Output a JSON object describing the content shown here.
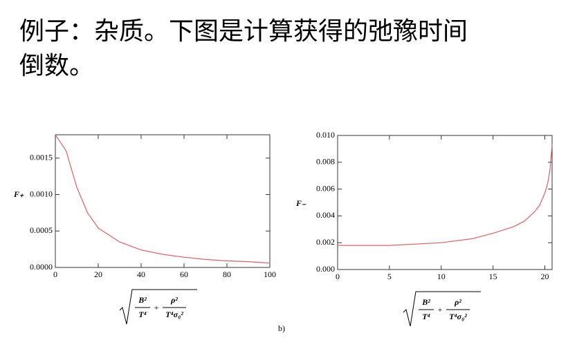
{
  "slide": {
    "title_lines": [
      "例子：杂质。下图是计算获得的弛豫时间",
      "倒数。"
    ]
  },
  "chart_data": [
    {
      "type": "line",
      "ylabel": "F₊",
      "xlabel": {
        "num1": "B²",
        "den1": "T⁴",
        "op": "+",
        "num2": "ρ²",
        "den2": "T⁴σ₀²"
      },
      "x": [
        0,
        5,
        10,
        15,
        20,
        30,
        40,
        50,
        60,
        70,
        80,
        90,
        100
      ],
      "values": [
        0.00182,
        0.0016,
        0.0011,
        0.00075,
        0.00054,
        0.00035,
        0.00024,
        0.00018,
        0.00014,
        0.00011,
        9e-05,
        8e-05,
        6e-05
      ],
      "color": "#e06060",
      "xlim": [
        0,
        100
      ],
      "xticks": [
        0,
        20,
        40,
        60,
        80,
        100
      ],
      "ylim": [
        0,
        0.00182
      ],
      "yticks": [
        {
          "value": 0,
          "label": "0.0000"
        },
        0.0005,
        {
          "value": 0.001,
          "label": "0.0010"
        },
        0.0015
      ]
    },
    {
      "type": "line",
      "ylabel": "F₋",
      "annotation": "b)",
      "xlabel": {
        "num1": "B²",
        "den1": "T⁴",
        "op": "+",
        "num2": "ρ²",
        "den2": "T⁴σ₀²"
      },
      "x": [
        0,
        5,
        10,
        13,
        15,
        17,
        18,
        19,
        19.5,
        20,
        20.3,
        20.5,
        20.7
      ],
      "values": [
        0.0018,
        0.0018,
        0.002,
        0.0023,
        0.0027,
        0.0032,
        0.0036,
        0.0043,
        0.0048,
        0.0057,
        0.0065,
        0.0075,
        0.0093
      ],
      "color": "#e06060",
      "xlim": [
        0,
        20.7
      ],
      "xticks": [
        0,
        5,
        10,
        15,
        20
      ],
      "ylim": [
        0,
        0.01
      ],
      "yticks": [
        {
          "value": 0,
          "label": "0.000"
        },
        0.002,
        0.004,
        0.006,
        0.008,
        {
          "value": 0.01,
          "label": "0.010"
        }
      ]
    }
  ]
}
